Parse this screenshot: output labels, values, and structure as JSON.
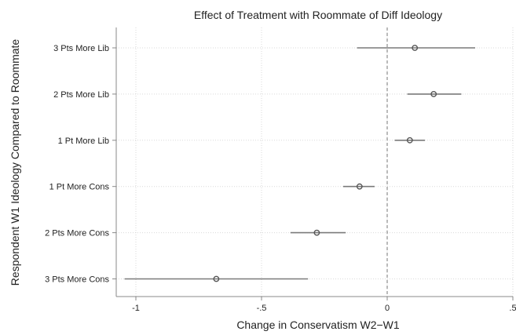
{
  "chart_data": {
    "type": "scatter",
    "subtype": "coefficient-plot-horizontal",
    "title": "Effect of Treatment with Roommate of Diff Ideology",
    "xlabel": "Change in Conservatism W2−W1",
    "ylabel": "Respondent W1 Ideology Compared to Roommate",
    "xlim": [
      -1.05,
      0.5
    ],
    "xticks": [
      -1,
      -0.5,
      0,
      0.5
    ],
    "xtick_labels": [
      "-1",
      "-.5",
      "0",
      ".5"
    ],
    "grid": true,
    "reference_line_x": 0,
    "categories": [
      "3 Pts More Lib",
      "2 Pts More Lib",
      "1 Pt More Lib",
      "1 Pt More Cons",
      "2 Pts More Cons",
      "3 Pts More Cons"
    ],
    "estimates": [
      0.11,
      0.185,
      0.09,
      -0.11,
      -0.28,
      -0.68
    ],
    "ci_low": [
      -0.12,
      0.08,
      0.03,
      -0.175,
      -0.385,
      -1.045
    ],
    "ci_high": [
      0.35,
      0.295,
      0.15,
      -0.05,
      -0.165,
      -0.315
    ],
    "colors": {
      "marker": "#555555",
      "ci_line": "#7a7a7a",
      "ref_line": "#777777",
      "grid": "#d9d9d9"
    }
  }
}
